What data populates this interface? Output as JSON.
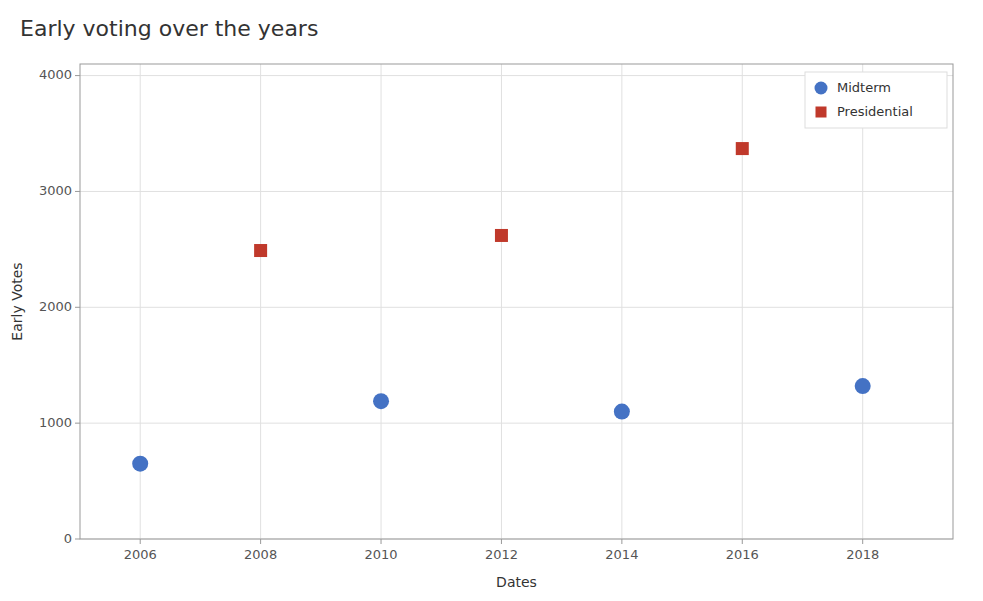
{
  "chart_data": {
    "type": "scatter",
    "title": "Early voting over the years",
    "xlabel": "Dates",
    "ylabel": "Early Votes",
    "series": [
      {
        "name": "Midterm",
        "color": "#4472C4",
        "marker": "circle",
        "x": [
          2006,
          2010,
          2014,
          2018
        ],
        "values": [
          650,
          1190,
          1100,
          1320
        ]
      },
      {
        "name": "Presidential",
        "color": "#C0392B",
        "marker": "square",
        "x": [
          2008,
          2012,
          2016
        ],
        "values": [
          2490,
          2620,
          3370
        ]
      }
    ],
    "xlim": [
      2005,
      2019.5
    ],
    "xticks": [
      2006,
      2008,
      2010,
      2012,
      2014,
      2016,
      2018
    ],
    "ylim": [
      0,
      4100
    ],
    "yticks": [
      0,
      1000,
      2000,
      3000,
      4000
    ],
    "grid": true,
    "legend": "upper right"
  }
}
